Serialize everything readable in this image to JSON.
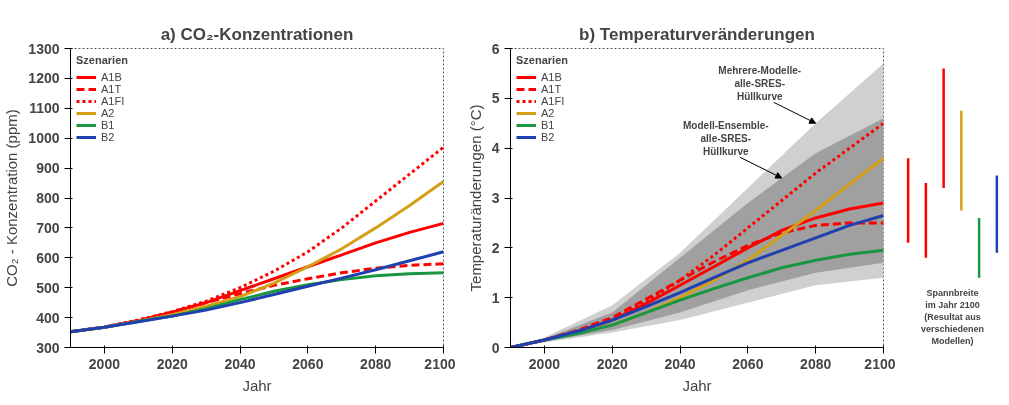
{
  "chart_data": [
    {
      "type": "line",
      "title": "a) CO₂-Konzentrationen",
      "xlabel": "Jahr",
      "ylabel": "CO₂ - Konzentration (ppm)",
      "legend_title": "Szenarien",
      "legend": "top left",
      "grid": false,
      "x": [
        1990,
        2000,
        2010,
        2020,
        2030,
        2040,
        2050,
        2060,
        2070,
        2080,
        2090,
        2100
      ],
      "xlim": [
        1990,
        2100
      ],
      "xticks": [
        2000,
        2020,
        2040,
        2060,
        2080,
        2100
      ],
      "ylim": [
        300,
        1300
      ],
      "yticks": [
        300,
        400,
        500,
        600,
        700,
        800,
        900,
        1000,
        1100,
        1200,
        1300
      ],
      "series": [
        {
          "name": "A1B",
          "color": "#ff0000",
          "line_style": "solid",
          "values": [
            353,
            368,
            390,
            418,
            450,
            490,
            530,
            570,
            610,
            650,
            685,
            715
          ]
        },
        {
          "name": "A1T",
          "color": "#ff0000",
          "line_style": "dashed",
          "values": [
            353,
            368,
            390,
            418,
            450,
            480,
            508,
            530,
            550,
            565,
            575,
            580
          ]
        },
        {
          "name": "A1FI",
          "color": "#ff0000",
          "line_style": "dotted",
          "values": [
            353,
            368,
            392,
            420,
            455,
            500,
            555,
            620,
            700,
            790,
            880,
            970
          ]
        },
        {
          "name": "A2",
          "color": "#d4a017",
          "line_style": "solid",
          "values": [
            353,
            368,
            388,
            410,
            438,
            470,
            515,
            570,
            630,
            700,
            775,
            855
          ]
        },
        {
          "name": "B1",
          "color": "#1a9641",
          "line_style": "solid",
          "values": [
            353,
            368,
            387,
            405,
            430,
            460,
            488,
            510,
            527,
            540,
            547,
            550
          ]
        },
        {
          "name": "B2",
          "color": "#2040b0",
          "line_style": "solid",
          "values": [
            353,
            368,
            386,
            405,
            425,
            450,
            477,
            505,
            532,
            560,
            590,
            620
          ]
        }
      ]
    },
    {
      "type": "line",
      "title": "b) Temperaturveränderungen",
      "xlabel": "Jahr",
      "ylabel": "Temperaturänderungen (°C)",
      "legend_title": "Szenarien",
      "legend": "top left",
      "grid": false,
      "x": [
        1990,
        2000,
        2010,
        2020,
        2030,
        2040,
        2050,
        2060,
        2070,
        2080,
        2090,
        2100
      ],
      "xlim": [
        1990,
        2100
      ],
      "xticks": [
        2000,
        2020,
        2040,
        2060,
        2080,
        2100
      ],
      "ylim": [
        0,
        6
      ],
      "yticks": [
        0,
        1,
        2,
        3,
        4,
        5,
        6
      ],
      "annotations": [
        {
          "text": "Mehrere-Modelle-\nalle-SRES-\nHüllkurve",
          "x": 2080,
          "y": 4.5
        },
        {
          "text": "Modell-Ensemble-\nalle-SRES-\nHüllkurve",
          "x": 2070,
          "y": 3.4
        }
      ],
      "series": [
        {
          "color": "#d0d0d0",
          "x": [
            1990,
            2000,
            2020,
            2040,
            2060,
            2080,
            2100
          ],
          "values": [
            null,
            null,
            null,
            null,
            null,
            null,
            null
          ],
          "lower": [
            0,
            0.1,
            0.3,
            0.55,
            0.9,
            1.25,
            1.4
          ],
          "upper": [
            0,
            0.2,
            0.85,
            1.9,
            3.2,
            4.5,
            5.7
          ]
        },
        {
          "color": "#a0a0a0",
          "x": [
            1990,
            2000,
            2020,
            2040,
            2060,
            2080,
            2100
          ],
          "values": [
            null,
            null,
            null,
            null,
            null,
            null,
            null
          ],
          "lower": [
            0,
            0.12,
            0.35,
            0.7,
            1.15,
            1.5,
            1.7
          ],
          "upper": [
            0,
            0.18,
            0.7,
            1.8,
            2.9,
            3.9,
            4.6
          ]
        },
        {
          "name": "A1B",
          "color": "#ff0000",
          "line_style": "solid",
          "values": [
            0,
            0.15,
            0.33,
            0.55,
            0.88,
            1.25,
            1.62,
            2.0,
            2.35,
            2.6,
            2.78,
            2.9
          ]
        },
        {
          "name": "A1T",
          "color": "#ff0000",
          "line_style": "dashed",
          "values": [
            0,
            0.15,
            0.35,
            0.6,
            0.97,
            1.35,
            1.72,
            2.05,
            2.3,
            2.45,
            2.5,
            2.5
          ]
        },
        {
          "name": "A1FI",
          "color": "#ff0000",
          "line_style": "dotted",
          "values": [
            0,
            0.15,
            0.33,
            0.55,
            0.92,
            1.35,
            1.85,
            2.4,
            2.95,
            3.5,
            4.0,
            4.5
          ]
        },
        {
          "name": "A2",
          "color": "#d4a017",
          "line_style": "solid",
          "values": [
            null,
            null,
            null,
            0.45,
            0.7,
            1.0,
            1.35,
            1.75,
            2.25,
            2.75,
            3.28,
            3.8
          ]
        },
        {
          "name": "B1",
          "color": "#1a9641",
          "line_style": "solid",
          "values": [
            0,
            0.15,
            0.28,
            0.45,
            0.7,
            0.95,
            1.18,
            1.4,
            1.6,
            1.75,
            1.87,
            1.95
          ]
        },
        {
          "name": "B2",
          "color": "#2040b0",
          "line_style": "solid",
          "values": [
            0,
            0.15,
            0.33,
            0.55,
            0.82,
            1.1,
            1.4,
            1.7,
            1.95,
            2.2,
            2.45,
            2.65
          ]
        }
      ]
    },
    {
      "type": "bar",
      "categories": [
        null,
        null,
        null,
        null,
        null,
        null
      ],
      "ylim": [
        0,
        6
      ],
      "tick_labels": false,
      "base": [
        2.1,
        1.8,
        3.2,
        2.75,
        1.4,
        1.9
      ],
      "values": [
        1.7,
        1.5,
        2.4,
        2.0,
        1.2,
        1.55
      ],
      "colors": [
        "#ff0000",
        "#ff0000",
        "#ff0000",
        "#d4a017",
        "#1a9641",
        "#2040b0"
      ],
      "annotations": [
        "Spannbreite\nim Jahr 2100\n(Resultat aus\nverschiedenen\nModellen)"
      ]
    }
  ]
}
